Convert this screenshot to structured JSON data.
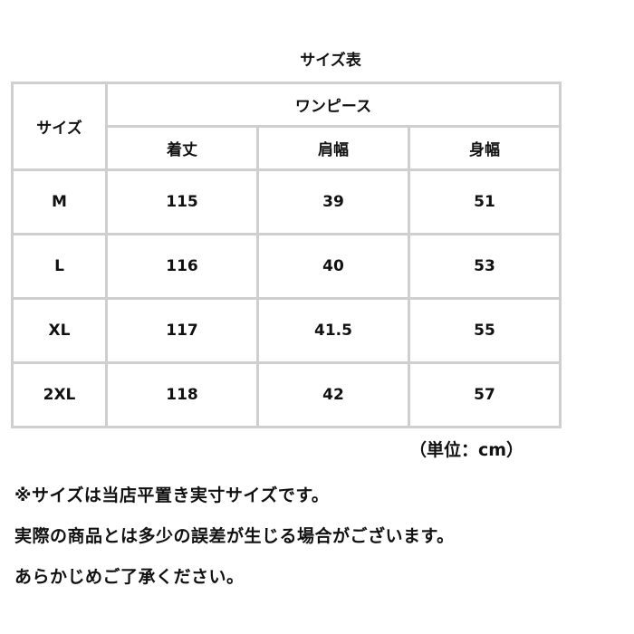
{
  "title": "サイズ表",
  "table": {
    "size_header": "サイズ",
    "group_header": "ワンピース",
    "columns": [
      "着丈",
      "肩幅",
      "身幅"
    ],
    "rows": [
      {
        "size": "M",
        "values": [
          "115",
          "39",
          "51"
        ]
      },
      {
        "size": "L",
        "values": [
          "116",
          "40",
          "53"
        ]
      },
      {
        "size": "XL",
        "values": [
          "117",
          "41.5",
          "55"
        ]
      },
      {
        "size": "2XL",
        "values": [
          "118",
          "42",
          "57"
        ]
      }
    ]
  },
  "unit": "（単位：cm）",
  "notes": [
    "※サイズは当店平置き実寸サイズです。",
    "実際の商品とは多少の誤差が生じる場合がございます。",
    "あらかじめご了承ください。"
  ]
}
